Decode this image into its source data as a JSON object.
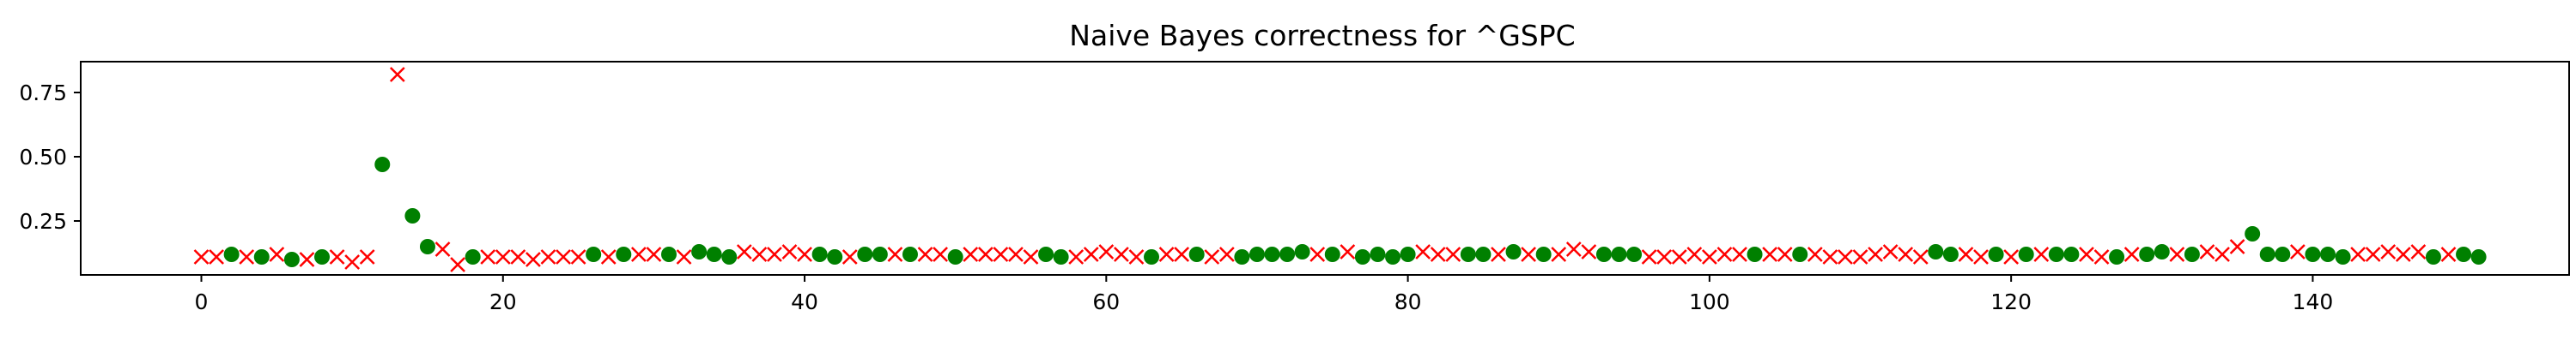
{
  "chart_data": {
    "type": "scatter",
    "title": "Naive Bayes correctness for ^GSPC",
    "xlabel": "",
    "ylabel": "",
    "xlim": [
      -8,
      157
    ],
    "ylim": [
      0.04,
      0.87
    ],
    "x_ticks": [
      0,
      20,
      40,
      60,
      80,
      100,
      120,
      140
    ],
    "y_ticks": [
      0.25,
      0.5,
      0.75
    ],
    "y_tick_labels": [
      "0.25",
      "0.50",
      "0.75"
    ],
    "grid": false,
    "legend": "none",
    "series": [
      {
        "marker": "circle",
        "color": "#008000",
        "x": [
          2,
          4,
          6,
          8,
          12,
          14,
          15,
          18,
          26,
          28,
          31,
          33,
          34,
          35,
          41,
          42,
          44,
          45,
          47,
          50,
          56,
          57,
          63,
          66,
          69,
          70,
          71,
          72,
          73,
          75,
          77,
          78,
          79,
          80,
          84,
          85,
          87,
          89,
          93,
          94,
          95,
          103,
          106,
          115,
          116,
          119,
          121,
          123,
          124,
          127,
          129,
          130,
          132,
          136,
          137,
          138,
          140,
          141,
          142,
          148,
          150,
          151
        ],
        "y": [
          0.12,
          0.11,
          0.1,
          0.11,
          0.47,
          0.27,
          0.15,
          0.11,
          0.12,
          0.12,
          0.12,
          0.13,
          0.12,
          0.11,
          0.12,
          0.11,
          0.12,
          0.12,
          0.12,
          0.11,
          0.12,
          0.11,
          0.11,
          0.12,
          0.11,
          0.12,
          0.12,
          0.12,
          0.13,
          0.12,
          0.11,
          0.12,
          0.11,
          0.12,
          0.12,
          0.12,
          0.13,
          0.12,
          0.12,
          0.12,
          0.12,
          0.12,
          0.12,
          0.13,
          0.12,
          0.12,
          0.12,
          0.12,
          0.12,
          0.11,
          0.12,
          0.13,
          0.12,
          0.2,
          0.12,
          0.12,
          0.12,
          0.12,
          0.11,
          0.11,
          0.12,
          0.11
        ]
      },
      {
        "marker": "x",
        "color": "#ff0000",
        "x": [
          0,
          1,
          3,
          5,
          7,
          9,
          10,
          11,
          13,
          16,
          17,
          19,
          20,
          21,
          22,
          23,
          24,
          25,
          27,
          29,
          30,
          32,
          36,
          37,
          38,
          39,
          40,
          43,
          46,
          48,
          49,
          51,
          52,
          53,
          54,
          55,
          58,
          59,
          60,
          61,
          62,
          64,
          65,
          67,
          68,
          74,
          76,
          81,
          82,
          83,
          86,
          88,
          90,
          91,
          92,
          96,
          97,
          98,
          99,
          100,
          101,
          102,
          104,
          105,
          107,
          108,
          109,
          110,
          111,
          112,
          113,
          114,
          117,
          118,
          120,
          122,
          125,
          126,
          128,
          131,
          133,
          134,
          135,
          139,
          143,
          144,
          145,
          146,
          147,
          149
        ],
        "y": [
          0.11,
          0.11,
          0.11,
          0.12,
          0.1,
          0.11,
          0.09,
          0.11,
          0.82,
          0.14,
          0.08,
          0.11,
          0.11,
          0.11,
          0.1,
          0.11,
          0.11,
          0.11,
          0.11,
          0.12,
          0.12,
          0.11,
          0.13,
          0.12,
          0.12,
          0.13,
          0.12,
          0.11,
          0.12,
          0.12,
          0.12,
          0.12,
          0.12,
          0.12,
          0.12,
          0.11,
          0.11,
          0.12,
          0.13,
          0.12,
          0.11,
          0.12,
          0.12,
          0.11,
          0.12,
          0.12,
          0.13,
          0.13,
          0.12,
          0.12,
          0.12,
          0.12,
          0.12,
          0.14,
          0.13,
          0.11,
          0.11,
          0.11,
          0.12,
          0.11,
          0.12,
          0.12,
          0.12,
          0.12,
          0.12,
          0.11,
          0.11,
          0.11,
          0.12,
          0.13,
          0.12,
          0.11,
          0.12,
          0.11,
          0.11,
          0.12,
          0.12,
          0.11,
          0.12,
          0.12,
          0.13,
          0.12,
          0.15,
          0.13,
          0.12,
          0.12,
          0.13,
          0.12,
          0.13,
          0.12
        ]
      }
    ]
  }
}
